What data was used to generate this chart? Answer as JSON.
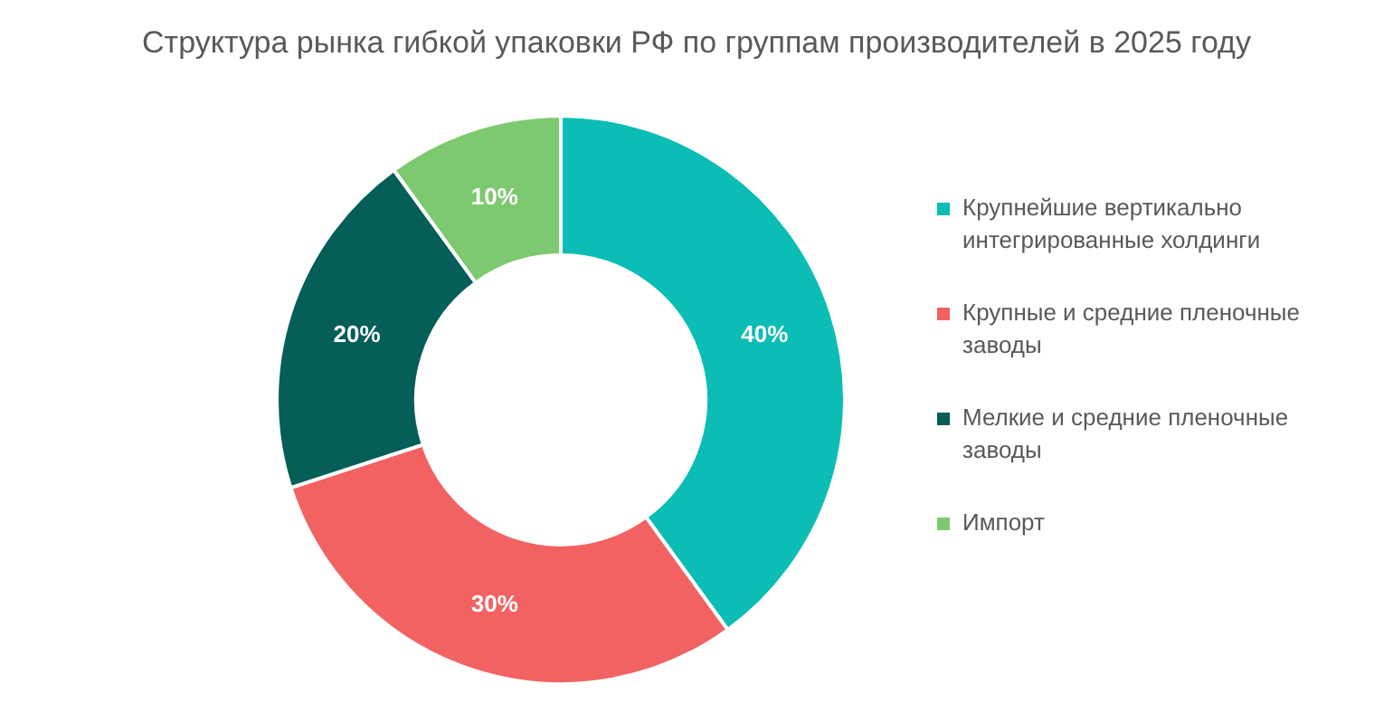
{
  "chart_data": {
    "type": "donut",
    "title": "Структура рынка гибкой упаковки РФ по группам производителей в 2025 году",
    "categories": [
      "Крупнейшие вертикально интегрированные холдинги",
      "Крупные и средние пленочные заводы",
      "Мелкие и средние пленочные заводы",
      "Импорт"
    ],
    "values": [
      40,
      30,
      20,
      10
    ],
    "colors": [
      "#0bbdb5",
      "#f26262",
      "#055e58",
      "#7dc96f"
    ],
    "value_labels": [
      "40%",
      "30%",
      "20%",
      "10%"
    ],
    "legend": "right"
  }
}
